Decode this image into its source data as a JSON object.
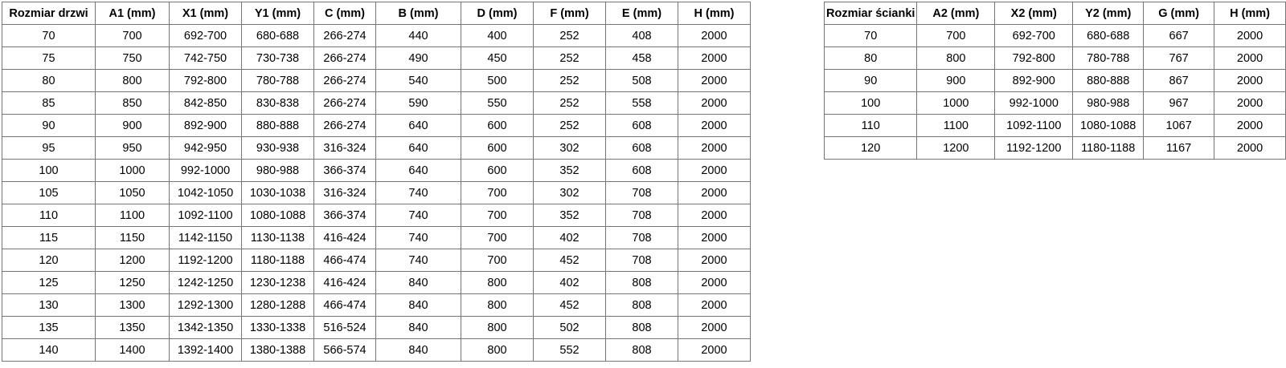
{
  "colors": {
    "background": "#ffffff",
    "border": "#757575",
    "text": "#000000"
  },
  "door_table": {
    "headers": [
      "Rozmiar drzwi",
      "A1 (mm)",
      "X1 (mm)",
      "Y1 (mm)",
      "C (mm)",
      "B (mm)",
      "D (mm)",
      "F (mm)",
      "E (mm)",
      "H (mm)"
    ],
    "rows": [
      [
        "70",
        "700",
        "692-700",
        "680-688",
        "266-274",
        "440",
        "400",
        "252",
        "408",
        "2000"
      ],
      [
        "75",
        "750",
        "742-750",
        "730-738",
        "266-274",
        "490",
        "450",
        "252",
        "458",
        "2000"
      ],
      [
        "80",
        "800",
        "792-800",
        "780-788",
        "266-274",
        "540",
        "500",
        "252",
        "508",
        "2000"
      ],
      [
        "85",
        "850",
        "842-850",
        "830-838",
        "266-274",
        "590",
        "550",
        "252",
        "558",
        "2000"
      ],
      [
        "90",
        "900",
        "892-900",
        "880-888",
        "266-274",
        "640",
        "600",
        "252",
        "608",
        "2000"
      ],
      [
        "95",
        "950",
        "942-950",
        "930-938",
        "316-324",
        "640",
        "600",
        "302",
        "608",
        "2000"
      ],
      [
        "100",
        "1000",
        "992-1000",
        "980-988",
        "366-374",
        "640",
        "600",
        "352",
        "608",
        "2000"
      ],
      [
        "105",
        "1050",
        "1042-1050",
        "1030-1038",
        "316-324",
        "740",
        "700",
        "302",
        "708",
        "2000"
      ],
      [
        "110",
        "1100",
        "1092-1100",
        "1080-1088",
        "366-374",
        "740",
        "700",
        "352",
        "708",
        "2000"
      ],
      [
        "115",
        "1150",
        "1142-1150",
        "1130-1138",
        "416-424",
        "740",
        "700",
        "402",
        "708",
        "2000"
      ],
      [
        "120",
        "1200",
        "1192-1200",
        "1180-1188",
        "466-474",
        "740",
        "700",
        "452",
        "708",
        "2000"
      ],
      [
        "125",
        "1250",
        "1242-1250",
        "1230-1238",
        "416-424",
        "840",
        "800",
        "402",
        "808",
        "2000"
      ],
      [
        "130",
        "1300",
        "1292-1300",
        "1280-1288",
        "466-474",
        "840",
        "800",
        "452",
        "808",
        "2000"
      ],
      [
        "135",
        "1350",
        "1342-1350",
        "1330-1338",
        "516-524",
        "840",
        "800",
        "502",
        "808",
        "2000"
      ],
      [
        "140",
        "1400",
        "1392-1400",
        "1380-1388",
        "566-574",
        "840",
        "800",
        "552",
        "808",
        "2000"
      ]
    ]
  },
  "wall_table": {
    "headers": [
      "Rozmiar ścianki",
      "A2 (mm)",
      "X2 (mm)",
      "Y2 (mm)",
      "G (mm)",
      "H (mm)"
    ],
    "rows": [
      [
        "70",
        "700",
        "692-700",
        "680-688",
        "667",
        "2000"
      ],
      [
        "80",
        "800",
        "792-800",
        "780-788",
        "767",
        "2000"
      ],
      [
        "90",
        "900",
        "892-900",
        "880-888",
        "867",
        "2000"
      ],
      [
        "100",
        "1000",
        "992-1000",
        "980-988",
        "967",
        "2000"
      ],
      [
        "110",
        "1100",
        "1092-1100",
        "1080-1088",
        "1067",
        "2000"
      ],
      [
        "120",
        "1200",
        "1192-1200",
        "1180-1188",
        "1167",
        "2000"
      ]
    ]
  }
}
